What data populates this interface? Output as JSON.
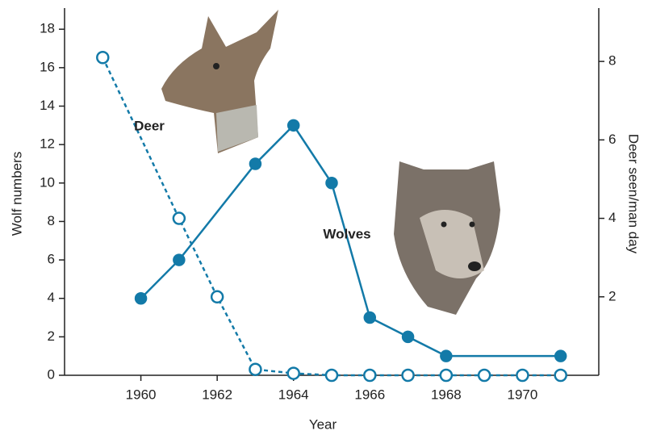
{
  "chart_data": {
    "type": "line",
    "xlabel": "Year",
    "ylabel": "Wolf numbers",
    "y2label": "Deer seen/man day",
    "xlim": [
      1958,
      1972
    ],
    "xticks": [
      1960,
      1962,
      1964,
      1966,
      1968,
      1970
    ],
    "ylim": [
      0,
      19.1
    ],
    "yticks": [
      0,
      2,
      4,
      6,
      8,
      10,
      12,
      14,
      16,
      18
    ],
    "y2lim": [
      0,
      9.36
    ],
    "y2ticks": [
      2,
      4,
      6,
      8
    ],
    "series": [
      {
        "name": "Wolves",
        "color": "#137aa8",
        "axis": "y",
        "marker": "filled",
        "dashed": false,
        "x": [
          1960,
          1961,
          1963,
          1964,
          1965,
          1966,
          1967,
          1968,
          1971
        ],
        "values": [
          4,
          6,
          11,
          13,
          10,
          3,
          2,
          1,
          1
        ]
      },
      {
        "name": "Deer",
        "color": "#137aa8",
        "axis": "y2",
        "marker": "open",
        "dashed": true,
        "x": [
          1959,
          1961,
          1962,
          1963,
          1964,
          1965,
          1966,
          1967,
          1968,
          1969,
          1970,
          1971
        ],
        "values": [
          8.1,
          4,
          2,
          0.15,
          0.05,
          0,
          0,
          0,
          0,
          0,
          0,
          0
        ]
      }
    ]
  }
}
